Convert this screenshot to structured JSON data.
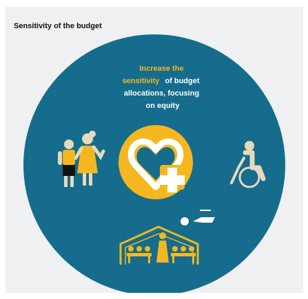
{
  "header": {
    "title": "Sensitivity of the budget"
  },
  "message": {
    "highlight": [
      "Increase the",
      "sensitivity"
    ],
    "text": [
      "of budget",
      "allocations, focusing",
      "on equity"
    ]
  }
}
